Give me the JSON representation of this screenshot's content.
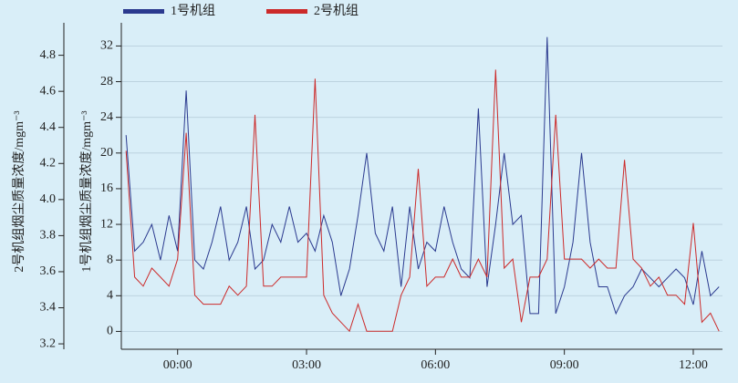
{
  "chart_data": {
    "type": "line",
    "y_label": "1号机组烟尘质量浓度/mgm⁻³",
    "y2_label": "2号机组烟尘质量浓度/mgm⁻³",
    "x": [
      -1.2,
      -1.0,
      -0.8,
      -0.6,
      -0.4,
      -0.2,
      0.0,
      0.2,
      0.4,
      0.6,
      0.8,
      1.0,
      1.2,
      1.4,
      1.6,
      1.8,
      2.0,
      2.2,
      2.4,
      2.6,
      2.8,
      3.0,
      3.2,
      3.4,
      3.6,
      3.8,
      4.0,
      4.2,
      4.4,
      4.6,
      4.8,
      5.0,
      5.2,
      5.4,
      5.6,
      5.8,
      6.0,
      6.2,
      6.4,
      6.6,
      6.8,
      7.0,
      7.2,
      7.4,
      7.6,
      7.8,
      8.0,
      8.2,
      8.4,
      8.6,
      8.8,
      9.0,
      9.2,
      9.4,
      9.6,
      9.8,
      10.0,
      10.2,
      10.4,
      10.6,
      10.8,
      11.0,
      11.2,
      11.4,
      11.6,
      11.8,
      12.0,
      12.2,
      12.4,
      12.6
    ],
    "series": [
      {
        "name": "1号机组",
        "color": "#2b3a8f",
        "values": [
          22,
          9,
          10,
          12,
          8,
          13,
          9,
          27,
          8,
          7,
          10,
          14,
          8,
          10,
          14,
          7,
          8,
          12,
          10,
          14,
          10,
          11,
          9,
          13,
          10,
          4,
          7,
          13,
          20,
          11,
          9,
          14,
          5,
          14,
          7,
          10,
          9,
          14,
          10,
          7,
          6,
          25,
          5,
          12,
          20,
          12,
          13,
          2,
          2,
          33,
          2,
          5,
          10,
          20,
          10,
          5,
          5,
          2,
          4,
          5,
          7,
          6,
          5,
          6,
          7,
          6,
          3,
          9,
          4,
          5
        ]
      },
      {
        "name": "2号机组",
        "color": "#cc2a2a",
        "axis": "y2",
        "values": [
          4.27,
          3.57,
          3.52,
          3.62,
          3.57,
          3.52,
          3.67,
          4.37,
          3.47,
          3.42,
          3.42,
          3.42,
          3.52,
          3.47,
          3.52,
          4.47,
          3.52,
          3.52,
          3.57,
          3.57,
          3.57,
          3.57,
          4.67,
          3.47,
          3.37,
          3.32,
          3.27,
          3.42,
          3.27,
          3.27,
          3.27,
          3.27,
          3.47,
          3.57,
          4.17,
          3.52,
          3.57,
          3.57,
          3.67,
          3.57,
          3.57,
          3.67,
          3.57,
          4.72,
          3.62,
          3.67,
          3.32,
          3.57,
          3.57,
          3.67,
          4.47,
          3.67,
          3.67,
          3.67,
          3.62,
          3.67,
          3.62,
          3.62,
          4.22,
          3.67,
          3.62,
          3.52,
          3.57,
          3.47,
          3.47,
          3.42,
          3.87,
          3.32,
          3.37,
          3.27
        ]
      }
    ],
    "xlim": [
      -1.31,
      12.68
    ],
    "xticks": [
      {
        "value": 0,
        "label": "00:00"
      },
      {
        "value": 3,
        "label": "03:00"
      },
      {
        "value": 6,
        "label": "06:00"
      },
      {
        "value": 9,
        "label": "09:00"
      },
      {
        "value": 12,
        "label": "12:00"
      }
    ],
    "ylim": [
      -2.0,
      34.6
    ],
    "yticks": [
      0,
      4,
      8,
      12,
      16,
      20,
      24,
      28,
      32
    ],
    "y2lim": [
      3.17,
      4.98
    ],
    "y2ticks": [
      3.2,
      3.4,
      3.6,
      3.8,
      {
        "value": 4.0,
        "label": "4.0"
      },
      4.2,
      4.4,
      4.6,
      4.8
    ],
    "grid": true
  }
}
